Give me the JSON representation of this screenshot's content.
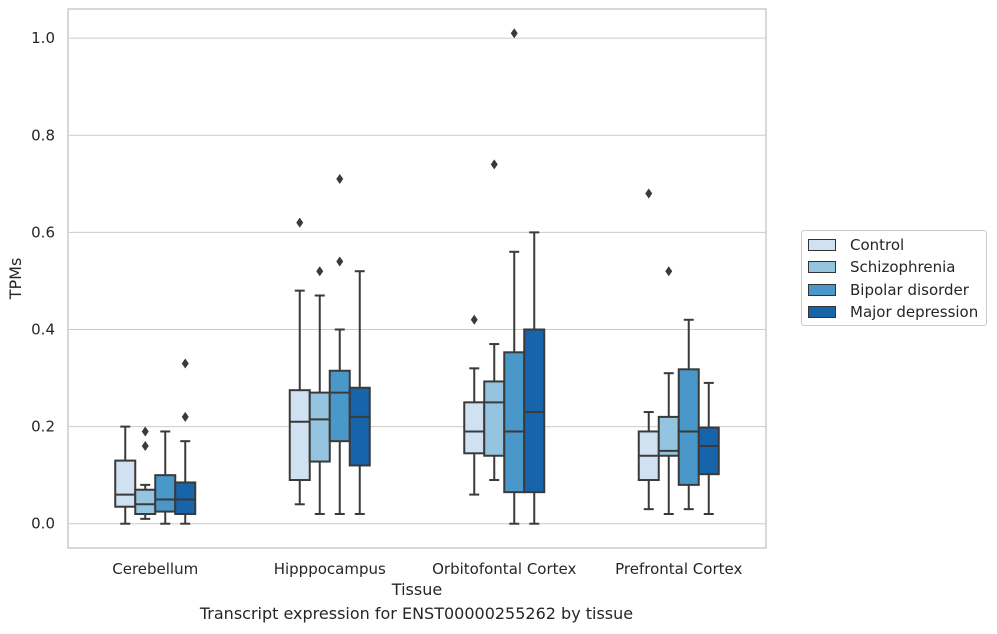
{
  "chart_data": {
    "type": "box",
    "xlabel": "Tissue",
    "ylabel": "TPMs",
    "ylim": [
      -0.05,
      1.06
    ],
    "yticks": [
      0.0,
      0.2,
      0.4,
      0.6,
      0.8,
      1.0
    ],
    "grid": true,
    "legend_position": "right",
    "categories": [
      "Cerebellum",
      "Hipppocampus",
      "Orbitofontal Cortex",
      "Prefrontal Cortex"
    ],
    "series": [
      {
        "name": "Control",
        "color": "#d0e1f2",
        "boxes": [
          {
            "whislo": 0.0,
            "q1": 0.035,
            "med": 0.06,
            "q3": 0.13,
            "whishi": 0.2,
            "fliers": []
          },
          {
            "whislo": 0.04,
            "q1": 0.09,
            "med": 0.21,
            "q3": 0.275,
            "whishi": 0.48,
            "fliers": [
              0.62
            ]
          },
          {
            "whislo": 0.06,
            "q1": 0.145,
            "med": 0.19,
            "q3": 0.25,
            "whishi": 0.32,
            "fliers": [
              0.42
            ]
          },
          {
            "whislo": 0.03,
            "q1": 0.09,
            "med": 0.14,
            "q3": 0.19,
            "whishi": 0.23,
            "fliers": [
              0.68
            ]
          }
        ]
      },
      {
        "name": "Schizophrenia",
        "color": "#94c4df",
        "boxes": [
          {
            "whislo": 0.01,
            "q1": 0.02,
            "med": 0.04,
            "q3": 0.07,
            "whishi": 0.08,
            "fliers": [
              0.16,
              0.19
            ]
          },
          {
            "whislo": 0.02,
            "q1": 0.128,
            "med": 0.215,
            "q3": 0.27,
            "whishi": 0.47,
            "fliers": [
              0.52
            ]
          },
          {
            "whislo": 0.09,
            "q1": 0.14,
            "med": 0.25,
            "q3": 0.293,
            "whishi": 0.37,
            "fliers": [
              0.74
            ]
          },
          {
            "whislo": 0.02,
            "q1": 0.14,
            "med": 0.15,
            "q3": 0.22,
            "whishi": 0.31,
            "fliers": [
              0.52
            ]
          }
        ]
      },
      {
        "name": "Bipolar disorder",
        "color": "#4a98c9",
        "boxes": [
          {
            "whislo": 0.0,
            "q1": 0.025,
            "med": 0.05,
            "q3": 0.1,
            "whishi": 0.19,
            "fliers": []
          },
          {
            "whislo": 0.02,
            "q1": 0.17,
            "med": 0.27,
            "q3": 0.315,
            "whishi": 0.4,
            "fliers": [
              0.54,
              0.71
            ]
          },
          {
            "whislo": 0.0,
            "q1": 0.065,
            "med": 0.19,
            "q3": 0.353,
            "whishi": 0.56,
            "fliers": [
              1.01
            ]
          },
          {
            "whislo": 0.03,
            "q1": 0.08,
            "med": 0.19,
            "q3": 0.318,
            "whishi": 0.42,
            "fliers": []
          }
        ]
      },
      {
        "name": "Major depression",
        "color": "#1764ab",
        "boxes": [
          {
            "whislo": 0.0,
            "q1": 0.02,
            "med": 0.05,
            "q3": 0.085,
            "whishi": 0.17,
            "fliers": [
              0.22,
              0.33
            ]
          },
          {
            "whislo": 0.02,
            "q1": 0.12,
            "med": 0.22,
            "q3": 0.28,
            "whishi": 0.52,
            "fliers": []
          },
          {
            "whislo": 0.0,
            "q1": 0.065,
            "med": 0.23,
            "q3": 0.4,
            "whishi": 0.6,
            "fliers": []
          },
          {
            "whislo": 0.02,
            "q1": 0.102,
            "med": 0.16,
            "q3": 0.198,
            "whishi": 0.29,
            "fliers": []
          }
        ]
      }
    ]
  },
  "caption": "Transcript expression for ENST00000255262 by tissue"
}
